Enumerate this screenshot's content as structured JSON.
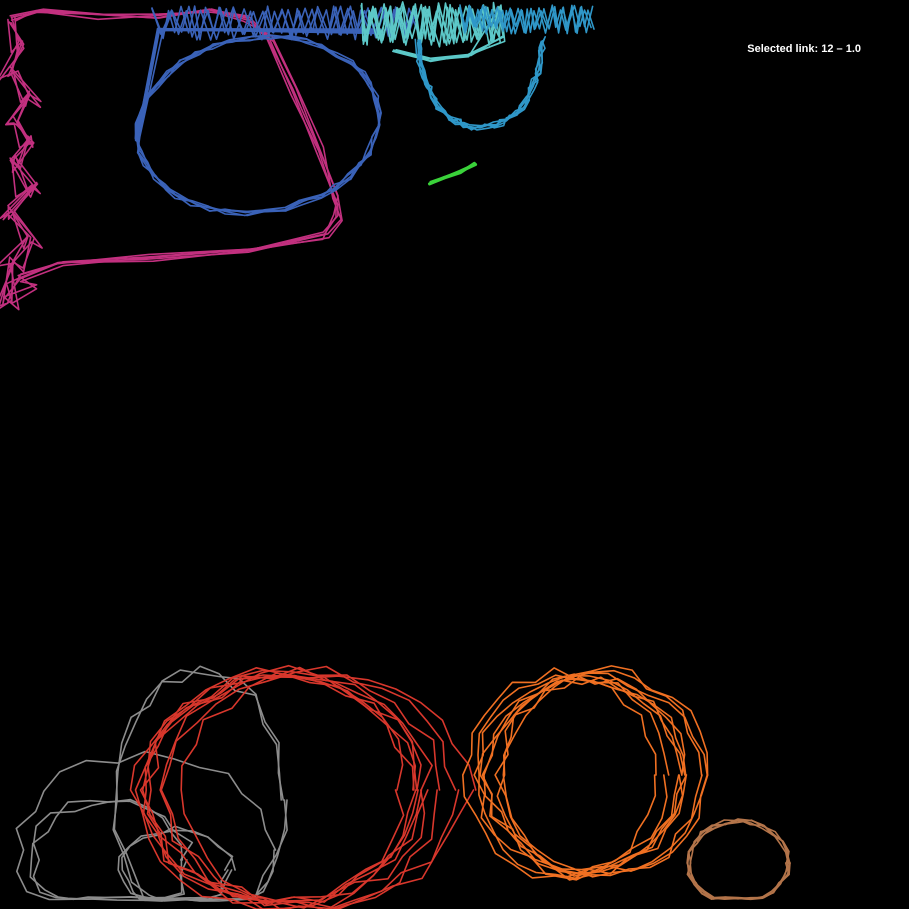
{
  "status": {
    "label": "Selected link:",
    "value": "12 – 1.0"
  },
  "background_color": "#000000",
  "strokes": [
    {
      "name": "magenta-loop-stroke",
      "color": "#c2307f",
      "layers": 5
    },
    {
      "name": "blue-loop-stroke",
      "color": "#3a62b8",
      "layers": 5
    },
    {
      "name": "blue-zigzag-band-stroke",
      "color": "#3a62b8",
      "layers": 3
    },
    {
      "name": "teal-cluster-stroke",
      "color": "#5cc8c8",
      "layers": 5
    },
    {
      "name": "sky-blue-arc-stroke",
      "color": "#2f97c8",
      "layers": 6
    },
    {
      "name": "sky-blue-zigzag-band-stroke",
      "color": "#2f97c8",
      "layers": 3
    },
    {
      "name": "green-mark-stroke",
      "color": "#3ad23a",
      "layers": 3
    },
    {
      "name": "grey-loop-stroke",
      "color": "#8c8c8c",
      "layers": 7
    },
    {
      "name": "red-loop-stroke",
      "color": "#d8372c",
      "layers": 9
    },
    {
      "name": "orange-loop-stroke",
      "color": "#f07022",
      "layers": 9
    },
    {
      "name": "brown-loop-stroke",
      "color": "#b3744a",
      "layers": 5
    }
  ]
}
